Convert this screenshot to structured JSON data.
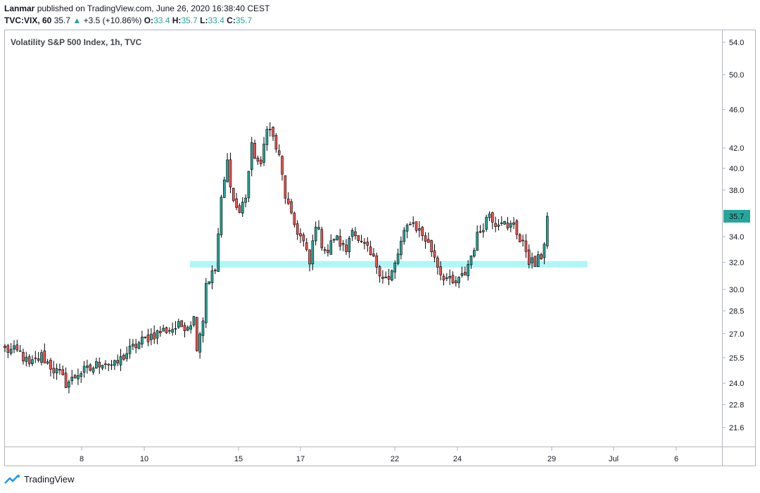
{
  "header": {
    "author": "Lanmar",
    "published_text": "published on TradingView.com, June 26, 2020 16:38:40 CEST",
    "symbol": "TVC:VIX, 60",
    "last": "35.7",
    "change": "+3.5 (+10.86%)",
    "o_label": "O:",
    "o_value": "33.4",
    "h_label": "H:",
    "h_value": "35.7",
    "l_label": "L:",
    "l_value": "33.4",
    "c_label": "C:",
    "c_value": "35.7"
  },
  "footer": {
    "brand": "TradingView"
  },
  "colors": {
    "up": "#26a69a",
    "down": "#ef5350",
    "zone": "#b2f5f7",
    "price_tag": "#26a69a"
  },
  "chart_data": {
    "type": "candlestick",
    "title": "Volatility S&P 500 Index, 1h, TVC",
    "y_scale": "log",
    "ylim": [
      20.5,
      56.0
    ],
    "y_ticks": [
      "54.0",
      "50.0",
      "46.0",
      "42.0",
      "40.0",
      "38.0",
      "34.0",
      "32.0",
      "30.0",
      "28.5",
      "27.0",
      "25.5",
      "24.0",
      "22.8",
      "21.6"
    ],
    "x_ticks": [
      "8",
      "10",
      "15",
      "17",
      "22",
      "24",
      "29",
      "Jul",
      "6"
    ],
    "last_price_label": "35.7",
    "support_zone": {
      "low": 31.6,
      "high": 32.1
    },
    "series": [
      {
        "name": "VIX",
        "waypoints": [
          [
            0,
            26.0
          ],
          [
            5,
            25.8
          ],
          [
            8,
            25.0
          ],
          [
            12,
            25.6
          ],
          [
            14,
            25.2
          ],
          [
            16,
            24.8
          ],
          [
            18,
            24.5
          ],
          [
            20,
            24.0
          ],
          [
            22,
            24.2
          ],
          [
            24,
            24.6
          ],
          [
            28,
            24.8
          ],
          [
            32,
            25.3
          ],
          [
            36,
            25.0
          ],
          [
            40,
            25.8
          ],
          [
            44,
            26.4
          ],
          [
            48,
            26.9
          ],
          [
            52,
            27.2
          ],
          [
            56,
            27.4
          ],
          [
            60,
            27.6
          ],
          [
            62,
            28.0
          ],
          [
            63,
            26.3
          ],
          [
            65,
            28.0
          ],
          [
            66,
            30.5
          ],
          [
            69,
            31.4
          ],
          [
            71,
            37.0
          ],
          [
            73,
            40.6
          ],
          [
            75,
            37.0
          ],
          [
            77,
            36.0
          ],
          [
            79,
            37.5
          ],
          [
            81,
            42.0
          ],
          [
            84,
            40.0
          ],
          [
            86,
            44.5
          ],
          [
            88,
            43.0
          ],
          [
            90,
            41.0
          ],
          [
            92,
            37.5
          ],
          [
            94,
            35.5
          ],
          [
            96,
            34.5
          ],
          [
            98,
            33.5
          ],
          [
            100,
            31.8
          ],
          [
            102,
            35.2
          ],
          [
            104,
            33.5
          ],
          [
            106,
            32.8
          ],
          [
            108,
            34.0
          ],
          [
            110,
            33.5
          ],
          [
            112,
            32.9
          ],
          [
            114,
            35.0
          ],
          [
            116,
            33.5
          ],
          [
            118,
            33.2
          ],
          [
            120,
            32.5
          ],
          [
            122,
            31.8
          ],
          [
            124,
            31.0
          ],
          [
            126,
            30.6
          ],
          [
            128,
            31.8
          ],
          [
            130,
            33.5
          ],
          [
            133,
            35.4
          ],
          [
            136,
            34.5
          ],
          [
            138,
            33.8
          ],
          [
            141,
            32.5
          ],
          [
            143,
            31.2
          ],
          [
            145,
            30.8
          ],
          [
            147,
            30.3
          ],
          [
            149,
            30.6
          ],
          [
            151,
            31.2
          ],
          [
            153,
            32.5
          ],
          [
            155,
            34.0
          ],
          [
            157,
            35.0
          ],
          [
            159,
            36.0
          ],
          [
            161,
            35.2
          ],
          [
            163,
            35.5
          ],
          [
            165,
            34.5
          ],
          [
            167,
            35.3
          ],
          [
            169,
            33.6
          ],
          [
            171,
            33.0
          ],
          [
            172,
            32.2
          ],
          [
            174,
            31.8
          ],
          [
            176,
            32.5
          ],
          [
            177,
            33.4
          ],
          [
            178,
            35.7
          ]
        ]
      }
    ]
  }
}
